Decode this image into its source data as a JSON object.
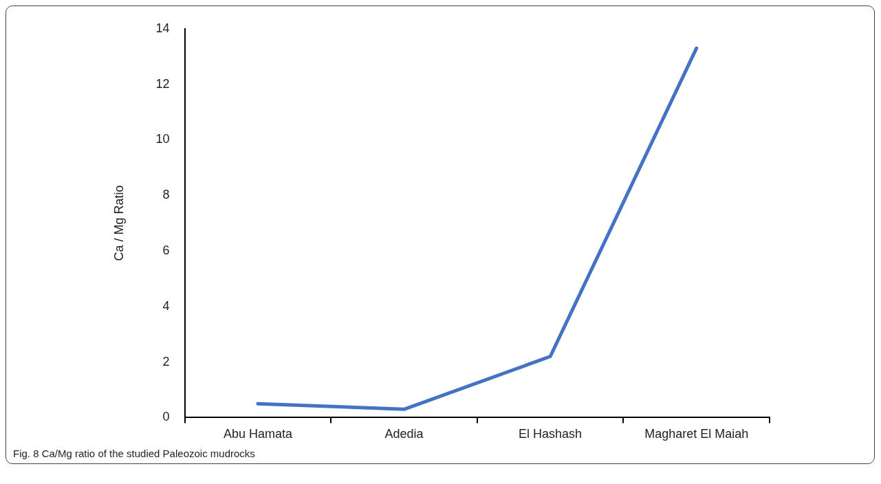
{
  "chart_data": {
    "type": "line",
    "ylabel": "Ca / Mg Ratio",
    "categories": [
      "Abu Hamata",
      "Adedia",
      "El Hashash",
      "Magharet El Maiah"
    ],
    "series": [
      {
        "color": "#4472c4",
        "values": [
          0.5,
          0.3,
          2.2,
          13.3
        ]
      }
    ],
    "ylim": [
      0,
      14
    ],
    "yticks": [
      0,
      2,
      4,
      6,
      8,
      10,
      12,
      14
    ],
    "grid": false,
    "legend": false,
    "marker": "none",
    "annotations": [
      "Fig. 8 Ca/Mg ratio of the studied Paleozoic mudrocks"
    ]
  }
}
